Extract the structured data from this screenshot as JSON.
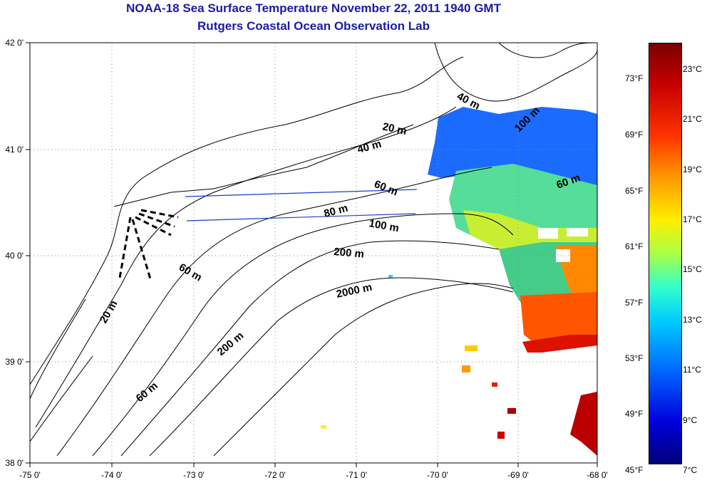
{
  "title_line1": "NOAA-18 Sea Surface Temperature November 22, 2011 1940 GMT",
  "title_line2": "Rutgers Coastal Ocean Observation Lab",
  "lon_ticks": [
    "-75 0'",
    "-74 0'",
    "-73 0'",
    "-72 0'",
    "-71 0'",
    "-70 0'",
    "-69 0'",
    "-68 0'"
  ],
  "lat_ticks": [
    "42 0'",
    "41 0'",
    "40 0'",
    "39 0'",
    "38 0'"
  ],
  "depth_labels": [
    "20 m",
    "40 m",
    "40 m",
    "60 m",
    "80 m",
    "100 m",
    "100 m",
    "60 m",
    "200 m",
    "2000 m",
    "60 m",
    "20 m",
    "200 m",
    "60 m"
  ],
  "colorbar": {
    "fahrenheit": [
      "73°F",
      "69°F",
      "65°F",
      "61°F",
      "57°F",
      "53°F",
      "49°F",
      "45°F"
    ],
    "celsius": [
      "23°C",
      "21°C",
      "19°C",
      "17°C",
      "15°C",
      "13°C",
      "11°C",
      "9°C",
      "7°C"
    ]
  },
  "colors": {
    "title": "#1a1aa6",
    "coast": "#000000",
    "transect": "#1a3fc0"
  }
}
